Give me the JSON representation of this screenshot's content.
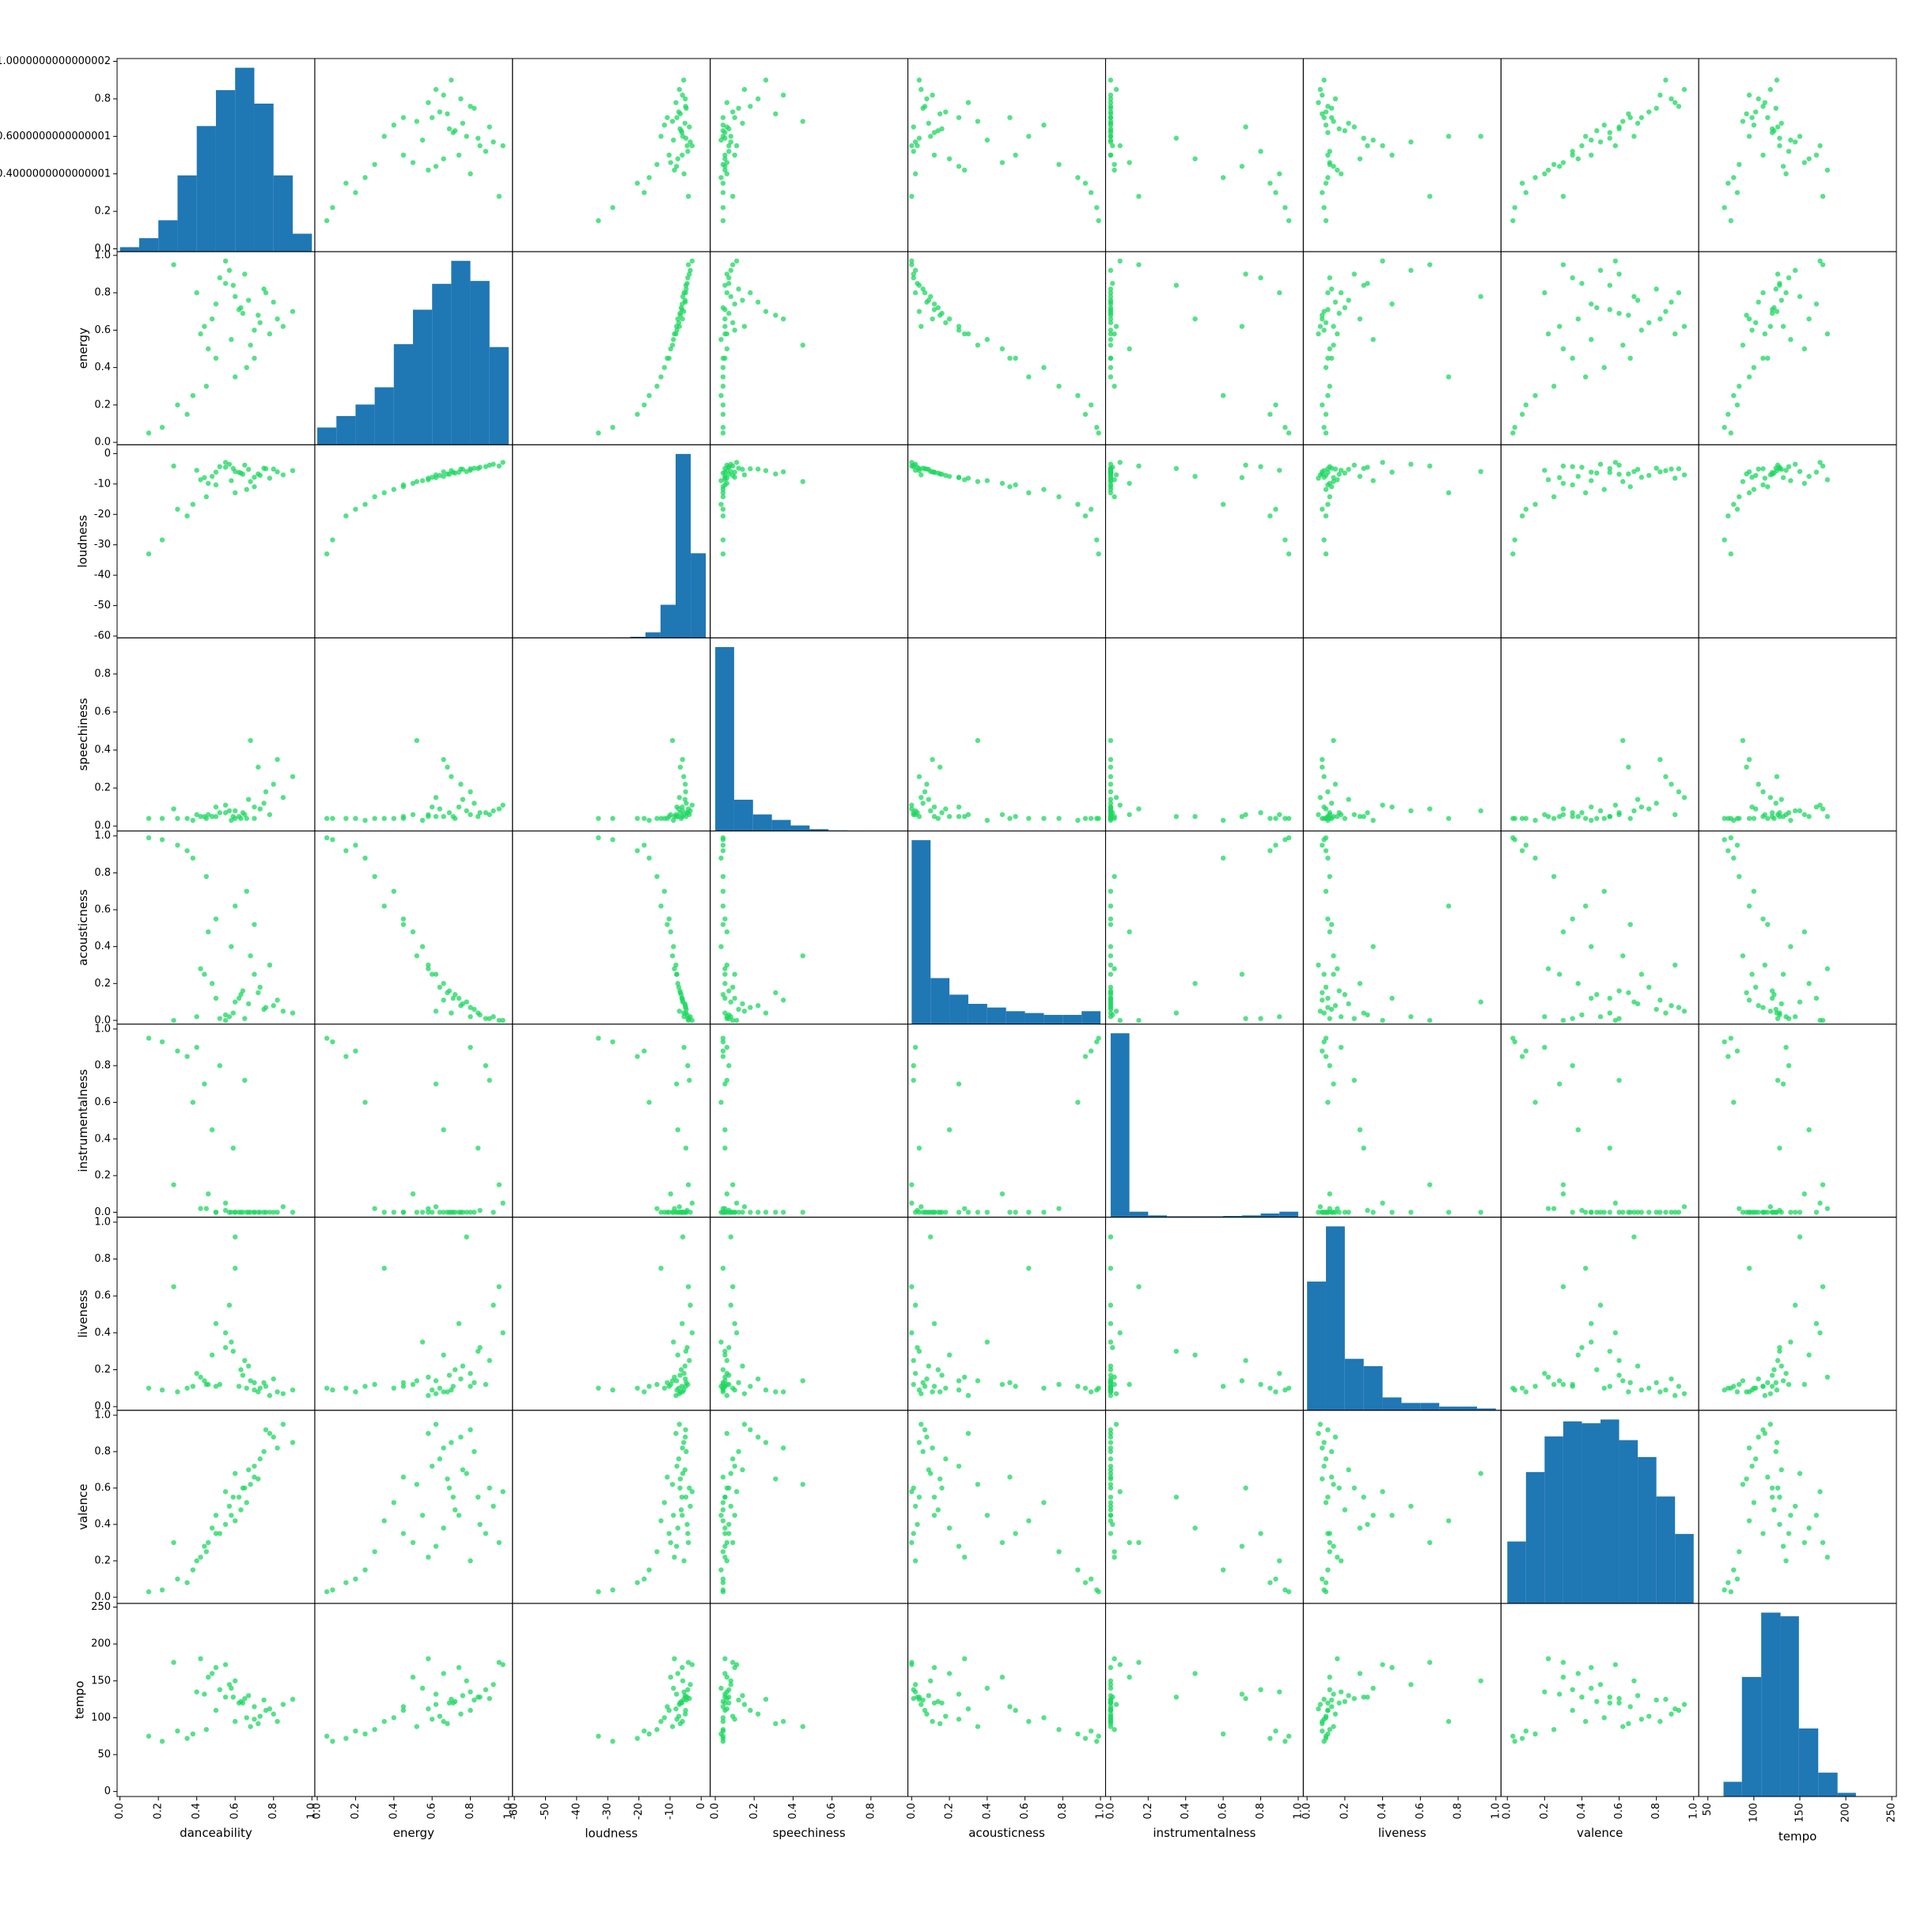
{
  "chart_data": {
    "type": "scatter_matrix",
    "point_color": "#1ed760",
    "hist_color": "#1f77b4",
    "series": [
      {
        "name": "danceability",
        "xlim": [
          -0.015,
          1.015
        ],
        "ylim": [
          -0.015,
          1.015
        ],
        "xticks": [
          {
            "value": 0,
            "label": "0.0"
          },
          0.2,
          0.4,
          0.6,
          0.8,
          {
            "value": 1,
            "label": "1.0"
          }
        ],
        "yticks": [
          {
            "value": 0,
            "label": "0.0"
          },
          0.2,
          0.4000000000000001,
          0.6000000000000001,
          0.8,
          1.0000000000000002
        ],
        "bins": [
          0,
          0.1,
          0.2,
          0.3,
          0.4,
          0.5,
          0.6,
          0.7,
          0.8,
          0.9,
          1.0
        ],
        "counts": [
          1,
          3,
          7,
          17,
          28,
          36,
          41,
          33,
          17,
          4
        ],
        "values": [
          0.62,
          0.55,
          0.7,
          0.45,
          0.8,
          0.35,
          0.65,
          0.58,
          0.72,
          0.28,
          0.5,
          0.85,
          0.4,
          0.66,
          0.6,
          0.22,
          0.75,
          0.48,
          0.68,
          0.55,
          0.78,
          0.38,
          0.63,
          0.9,
          0.52,
          0.6,
          0.42,
          0.73,
          0.57,
          0.3,
          0.67,
          0.46,
          0.82,
          0.59,
          0.7,
          0.15,
          0.64,
          0.5,
          0.76,
          0.44
        ]
      },
      {
        "name": "energy",
        "xlim": [
          -0.013,
          1.02
        ],
        "ylim": [
          -0.013,
          1.02
        ],
        "xticks": [
          {
            "value": 0,
            "label": "0.0"
          },
          0.2,
          0.4,
          0.6,
          0.8,
          {
            "value": 1,
            "label": "1.0"
          }
        ],
        "yticks": [
          {
            "value": 0,
            "label": "0.0"
          },
          0.2,
          0.4,
          0.6,
          0.8,
          {
            "value": 1,
            "label": "1.0"
          }
        ],
        "bins": [
          0,
          0.1,
          0.2,
          0.3,
          0.4,
          0.5,
          0.6,
          0.7,
          0.8,
          0.9,
          1.0
        ],
        "counts": [
          6,
          10,
          14,
          20,
          35,
          47,
          56,
          64,
          57,
          34
        ],
        "values": [
          0.71,
          0.85,
          0.6,
          0.3,
          0.75,
          0.15,
          0.9,
          0.55,
          0.68,
          0.95,
          0.45,
          0.62,
          0.8,
          0.4,
          0.78,
          0.08,
          0.82,
          0.66,
          0.52,
          0.97,
          0.58,
          0.25,
          0.72,
          0.7,
          0.88,
          0.35,
          0.58,
          0.64,
          0.92,
          0.2,
          0.76,
          0.5,
          0.66,
          0.84,
          0.45,
          0.05,
          0.69,
          0.74,
          0.8,
          0.62
        ]
      },
      {
        "name": "loudness",
        "xlim": [
          -60.6,
          2.9
        ],
        "ylim": [
          -60.6,
          2.9
        ],
        "xticks": [
          -60,
          -50,
          -40,
          -30,
          -20,
          -10,
          0
        ],
        "yticks": [
          -60,
          -50,
          -40,
          -30,
          -20,
          -10,
          0
        ],
        "bins": [
          -47,
          -42.15,
          -37.3,
          -32.45,
          -27.6,
          -22.75,
          -17.9,
          -13.05,
          -8.2,
          -3.35,
          1.5
        ],
        "counts": [
          0,
          0,
          0,
          0,
          0.2,
          0.6,
          3,
          18,
          100,
          46
        ],
        "values": [
          -6.2,
          -4.5,
          -7.8,
          -14.2,
          -5.1,
          -20.5,
          -3.8,
          -8.9,
          -6.7,
          -4.1,
          -10.3,
          -7.0,
          -5.5,
          -11.8,
          -5.9,
          -28.4,
          -4.8,
          -7.5,
          -9.2,
          -2.9,
          -8.1,
          -16.7,
          -6.4,
          -5.6,
          -4.3,
          -12.9,
          -8.6,
          -7.2,
          -3.5,
          -18.3,
          -5.2,
          -9.8,
          -6.0,
          -4.9,
          -10.9,
          -33.0,
          -6.8,
          -6.1,
          -5.0,
          -7.9
        ]
      },
      {
        "name": "speechiness",
        "xlim": [
          -0.026,
          0.99
        ],
        "ylim": [
          -0.026,
          0.99
        ],
        "xticks": [
          {
            "value": 0,
            "label": "0.0"
          },
          0.2,
          0.4,
          0.6,
          0.8
        ],
        "yticks": [
          {
            "value": 0,
            "label": "0.0"
          },
          0.2,
          0.4,
          0.6,
          0.8
        ],
        "bins": [
          0,
          0.097,
          0.194,
          0.291,
          0.388,
          0.485,
          0.582,
          0.679,
          0.776,
          0.873,
          0.97
        ],
        "counts": [
          100,
          17,
          9,
          6,
          3,
          1,
          0.3,
          0.2,
          0.1,
          0.1
        ],
        "values": [
          0.05,
          0.07,
          0.1,
          0.04,
          0.22,
          0.04,
          0.06,
          0.03,
          0.31,
          0.09,
          0.05,
          0.15,
          0.06,
          0.04,
          0.08,
          0.04,
          0.12,
          0.05,
          0.45,
          0.11,
          0.06,
          0.03,
          0.04,
          0.26,
          0.07,
          0.04,
          0.05,
          0.09,
          0.08,
          0.04,
          0.14,
          0.06,
          0.35,
          0.05,
          0.04,
          0.04,
          0.07,
          0.1,
          0.18,
          0.05
        ]
      },
      {
        "name": "acousticness",
        "xlim": [
          -0.02,
          1.027
        ],
        "ylim": [
          -0.02,
          1.027
        ],
        "xticks": [
          {
            "value": 0,
            "label": "0.0"
          },
          0.2,
          0.4,
          0.6,
          0.8,
          {
            "value": 1,
            "label": "1.0"
          }
        ],
        "yticks": [
          {
            "value": 0,
            "label": "0.0"
          },
          0.2,
          0.4,
          0.6,
          0.8,
          {
            "value": 1,
            "label": "1.0"
          }
        ],
        "bins": [
          0,
          0.1,
          0.2,
          0.3,
          0.4,
          0.5,
          0.6,
          0.7,
          0.8,
          0.9,
          1.0
        ],
        "counts": [
          100,
          25,
          16,
          11,
          9,
          7,
          6,
          5,
          5,
          7
        ],
        "values": [
          0.12,
          0.03,
          0.25,
          0.78,
          0.08,
          0.92,
          0.01,
          0.4,
          0.15,
          0.0,
          0.55,
          0.05,
          0.02,
          0.7,
          0.1,
          0.98,
          0.06,
          0.2,
          0.35,
          0.0,
          0.3,
          0.88,
          0.14,
          0.04,
          0.01,
          0.62,
          0.28,
          0.18,
          0.02,
          0.95,
          0.09,
          0.48,
          0.11,
          0.04,
          0.52,
          0.99,
          0.16,
          0.12,
          0.07,
          0.25
        ]
      },
      {
        "name": "instrumentalness",
        "xlim": [
          -0.027,
          1.027
        ],
        "ylim": [
          -0.027,
          1.027
        ],
        "xticks": [
          {
            "value": 0,
            "label": "0.0"
          },
          0.2,
          0.4,
          0.6,
          0.8,
          {
            "value": 1,
            "label": "1.0"
          }
        ],
        "yticks": [
          {
            "value": 0,
            "label": "0.0"
          },
          0.2,
          0.4,
          0.6,
          0.8,
          {
            "value": 1,
            "label": "1.0"
          }
        ],
        "bins": [
          0,
          0.1,
          0.2,
          0.3,
          0.4,
          0.5,
          0.6,
          0.7,
          0.8,
          0.9,
          1.0
        ],
        "counts": [
          100,
          3,
          1,
          0.5,
          0.5,
          0.5,
          0.7,
          1,
          2,
          3
        ],
        "values": [
          0.0,
          0.01,
          0.0,
          0.02,
          0.0,
          0.85,
          0.72,
          0.0,
          0.0,
          0.15,
          0.0,
          0.03,
          0.9,
          0.0,
          0.0,
          0.93,
          0.0,
          0.45,
          0.0,
          0.05,
          0.0,
          0.6,
          0.0,
          0.0,
          0.8,
          0.0,
          0.02,
          0.0,
          0.0,
          0.88,
          0.0,
          0.1,
          0.0,
          0.35,
          0.0,
          0.95,
          0.0,
          0.0,
          0.0,
          0.7
        ]
      },
      {
        "name": "liveness",
        "xlim": [
          -0.02,
          1.027
        ],
        "ylim": [
          -0.02,
          1.027
        ],
        "xticks": [
          {
            "value": 0,
            "label": "0.0"
          },
          0.2,
          0.4,
          0.6,
          0.8,
          {
            "value": 1,
            "label": "1.0"
          }
        ],
        "yticks": [
          {
            "value": 0,
            "label": "0.0"
          },
          0.2,
          0.4,
          0.6,
          0.8,
          {
            "value": 1,
            "label": "1.0"
          }
        ],
        "bins": [
          0,
          0.1,
          0.2,
          0.3,
          0.4,
          0.5,
          0.6,
          0.7,
          0.8,
          0.9,
          1.0
        ],
        "counts": [
          70,
          100,
          28,
          24,
          7,
          4,
          4,
          2,
          2,
          1
        ],
        "values": [
          0.11,
          0.32,
          0.09,
          0.12,
          0.15,
          0.1,
          0.25,
          0.35,
          0.08,
          0.65,
          0.11,
          0.07,
          0.18,
          0.1,
          0.92,
          0.09,
          0.13,
          0.28,
          0.14,
          0.4,
          0.06,
          0.11,
          0.2,
          0.09,
          0.12,
          0.75,
          0.16,
          0.1,
          0.55,
          0.08,
          0.22,
          0.12,
          0.08,
          0.3,
          0.13,
          0.1,
          0.17,
          0.45,
          0.11,
          0.14
        ]
      },
      {
        "name": "valence",
        "xlim": [
          -0.034,
          1.027
        ],
        "ylim": [
          -0.034,
          1.027
        ],
        "xticks": [
          {
            "value": 0,
            "label": "0.0"
          },
          0.2,
          0.4,
          0.6,
          0.8,
          {
            "value": 1,
            "label": "1.0"
          }
        ],
        "yticks": [
          {
            "value": 0,
            "label": "0.0"
          },
          0.2,
          0.4,
          0.6,
          0.8,
          {
            "value": 1,
            "label": "1.0"
          }
        ],
        "bins": [
          0,
          0.1,
          0.2,
          0.3,
          0.4,
          0.5,
          0.6,
          0.7,
          0.8,
          0.9,
          1.0
        ],
        "counts": [
          33,
          70,
          89,
          97,
          96,
          98,
          87,
          78,
          57,
          37
        ],
        "values": [
          0.55,
          0.4,
          0.72,
          0.25,
          0.88,
          0.08,
          0.6,
          0.45,
          0.65,
          0.3,
          0.35,
          0.95,
          0.2,
          0.52,
          0.68,
          0.04,
          0.8,
          0.38,
          0.62,
          0.58,
          0.9,
          0.15,
          0.48,
          0.85,
          0.35,
          0.42,
          0.22,
          0.76,
          0.5,
          0.1,
          0.7,
          0.3,
          0.82,
          0.55,
          0.66,
          0.03,
          0.6,
          0.45,
          0.92,
          0.28
        ]
      },
      {
        "name": "tempo",
        "xlim": [
          40,
          255
        ],
        "ylim": [
          -6.8,
          255
        ],
        "xticks": [
          50,
          100,
          150,
          200,
          250
        ],
        "yticks": [
          0,
          50,
          100,
          150,
          200,
          250
        ],
        "bins": [
          46,
          67,
          87,
          108,
          129,
          149,
          170,
          191,
          211,
          232,
          252
        ],
        "counts": [
          0,
          8,
          65,
          100,
          98,
          37,
          13,
          2,
          0,
          0
        ],
        "values": [
          120,
          128,
          98,
          84,
          105,
          72,
          126,
          140,
          92,
          175,
          110,
          118,
          135,
          100,
          150,
          68,
          124,
          160,
          88,
          172,
          112,
          78,
          122,
          125,
          138,
          95,
          180,
          102,
          145,
          82,
          130,
          155,
          95,
          128,
          115,
          75,
          120,
          168,
          110,
          132
        ]
      }
    ]
  }
}
